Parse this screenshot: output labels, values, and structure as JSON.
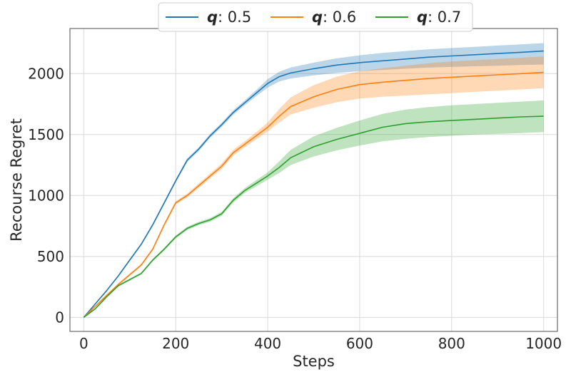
{
  "chart_data": {
    "type": "line",
    "title": "",
    "xlabel": "Steps",
    "ylabel": "Recourse Regret",
    "xlim": [
      -30,
      1030
    ],
    "ylim": [
      -115,
      2370
    ],
    "xticks": [
      0,
      200,
      400,
      600,
      800,
      1000
    ],
    "yticks": [
      0,
      500,
      1000,
      1500,
      2000
    ],
    "grid": true,
    "legend": {
      "position": "top-center",
      "columns": 3
    },
    "series": [
      {
        "name": "q: 0.5",
        "label_var": "q",
        "label_value": ": 0.5",
        "color": "#1f77b4",
        "band": true,
        "x": [
          0,
          25,
          50,
          75,
          100,
          125,
          150,
          175,
          200,
          225,
          250,
          275,
          300,
          325,
          350,
          375,
          400,
          425,
          450,
          500,
          550,
          600,
          650,
          700,
          750,
          800,
          850,
          900,
          950,
          1000
        ],
        "y": [
          0,
          110,
          220,
          340,
          470,
          600,
          760,
          940,
          1120,
          1290,
          1380,
          1490,
          1580,
          1680,
          1760,
          1840,
          1920,
          1975,
          2005,
          2040,
          2070,
          2090,
          2105,
          2120,
          2135,
          2145,
          2155,
          2165,
          2175,
          2185
        ],
        "low": [
          0,
          105,
          213,
          332,
          461,
          590,
          749,
          928,
          1107,
          1276,
          1365,
          1474,
          1563,
          1662,
          1740,
          1815,
          1885,
          1935,
          1960,
          1985,
          2005,
          2020,
          2030,
          2040,
          2050,
          2055,
          2060,
          2065,
          2070,
          2075
        ],
        "high": [
          0,
          115,
          227,
          348,
          479,
          610,
          771,
          952,
          1133,
          1304,
          1395,
          1506,
          1597,
          1698,
          1780,
          1865,
          1955,
          2015,
          2050,
          2090,
          2125,
          2150,
          2170,
          2185,
          2200,
          2210,
          2220,
          2230,
          2240,
          2250
        ]
      },
      {
        "name": "q: 0.6",
        "label_var": "q",
        "label_value": ": 0.6",
        "color": "#ff7f0e",
        "band": true,
        "x": [
          0,
          25,
          50,
          75,
          100,
          125,
          150,
          175,
          200,
          225,
          250,
          275,
          300,
          325,
          350,
          375,
          400,
          425,
          450,
          500,
          550,
          600,
          650,
          700,
          750,
          800,
          850,
          900,
          950,
          1000
        ],
        "y": [
          0,
          90,
          180,
          270,
          350,
          430,
          560,
          760,
          940,
          1000,
          1080,
          1160,
          1240,
          1350,
          1420,
          1490,
          1560,
          1650,
          1730,
          1810,
          1870,
          1910,
          1930,
          1945,
          1960,
          1970,
          1980,
          1990,
          2000,
          2010
        ],
        "low": [
          0,
          85,
          173,
          262,
          341,
          420,
          549,
          748,
          927,
          985,
          1062,
          1140,
          1218,
          1325,
          1395,
          1460,
          1525,
          1600,
          1665,
          1720,
          1765,
          1795,
          1810,
          1820,
          1830,
          1840,
          1850,
          1860,
          1870,
          1880
        ],
        "high": [
          0,
          95,
          187,
          278,
          359,
          440,
          571,
          772,
          953,
          1015,
          1098,
          1180,
          1262,
          1375,
          1445,
          1520,
          1600,
          1710,
          1805,
          1905,
          1975,
          2020,
          2045,
          2065,
          2085,
          2100,
          2110,
          2120,
          2130,
          2140
        ]
      },
      {
        "name": "q: 0.7",
        "label_var": "q",
        "label_value": ": 0.7",
        "color": "#2ca02c",
        "band": true,
        "x": [
          0,
          25,
          50,
          75,
          100,
          125,
          150,
          175,
          200,
          225,
          250,
          275,
          300,
          325,
          350,
          375,
          400,
          425,
          450,
          500,
          550,
          600,
          650,
          700,
          750,
          800,
          850,
          900,
          950,
          1000
        ],
        "y": [
          0,
          70,
          170,
          260,
          310,
          360,
          470,
          560,
          660,
          730,
          770,
          800,
          850,
          960,
          1040,
          1100,
          1160,
          1230,
          1310,
          1400,
          1460,
          1510,
          1560,
          1590,
          1605,
          1615,
          1625,
          1635,
          1645,
          1650
        ],
        "low": [
          0,
          66,
          164,
          253,
          302,
          351,
          460,
          549,
          648,
          717,
          756,
          785,
          834,
          942,
          1020,
          1075,
          1130,
          1185,
          1250,
          1320,
          1370,
          1410,
          1445,
          1465,
          1480,
          1490,
          1500,
          1505,
          1512,
          1520
        ],
        "high": [
          0,
          74,
          176,
          267,
          318,
          369,
          480,
          571,
          672,
          743,
          784,
          815,
          866,
          978,
          1060,
          1125,
          1190,
          1280,
          1375,
          1485,
          1555,
          1615,
          1670,
          1705,
          1725,
          1740,
          1750,
          1760,
          1770,
          1780
        ]
      }
    ]
  }
}
